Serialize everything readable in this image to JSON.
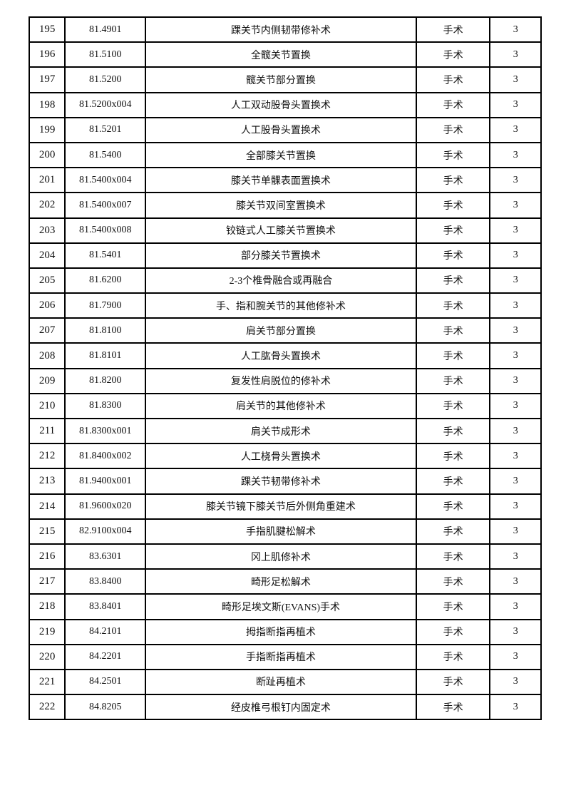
{
  "table": {
    "rows": [
      {
        "no": "195",
        "code": "81.4901",
        "name": "踝关节内侧韧带修补术",
        "type": "手术",
        "level": "3"
      },
      {
        "no": "196",
        "code": "81.5100",
        "name": "全髋关节置换",
        "type": "手术",
        "level": "3"
      },
      {
        "no": "197",
        "code": "81.5200",
        "name": "髋关节部分置换",
        "type": "手术",
        "level": "3"
      },
      {
        "no": "198",
        "code": "81.5200x004",
        "name": "人工双动股骨头置换术",
        "type": "手术",
        "level": "3"
      },
      {
        "no": "199",
        "code": "81.5201",
        "name": "人工股骨头置换术",
        "type": "手术",
        "level": "3"
      },
      {
        "no": "200",
        "code": "81.5400",
        "name": "全部膝关节置换",
        "type": "手术",
        "level": "3"
      },
      {
        "no": "201",
        "code": "81.5400x004",
        "name": "膝关节单髁表面置换术",
        "type": "手术",
        "level": "3"
      },
      {
        "no": "202",
        "code": "81.5400x007",
        "name": "膝关节双间室置换术",
        "type": "手术",
        "level": "3"
      },
      {
        "no": "203",
        "code": "81.5400x008",
        "name": "铰链式人工膝关节置换术",
        "type": "手术",
        "level": "3"
      },
      {
        "no": "204",
        "code": "81.5401",
        "name": "部分膝关节置换术",
        "type": "手术",
        "level": "3"
      },
      {
        "no": "205",
        "code": "81.6200",
        "name": "2-3个椎骨融合或再融合",
        "type": "手术",
        "level": "3"
      },
      {
        "no": "206",
        "code": "81.7900",
        "name": "手、指和腕关节的其他修补术",
        "type": "手术",
        "level": "3"
      },
      {
        "no": "207",
        "code": "81.8100",
        "name": "肩关节部分置换",
        "type": "手术",
        "level": "3"
      },
      {
        "no": "208",
        "code": "81.8101",
        "name": "人工肱骨头置换术",
        "type": "手术",
        "level": "3"
      },
      {
        "no": "209",
        "code": "81.8200",
        "name": "复发性肩脱位的修补术",
        "type": "手术",
        "level": "3"
      },
      {
        "no": "210",
        "code": "81.8300",
        "name": "肩关节的其他修补术",
        "type": "手术",
        "level": "3"
      },
      {
        "no": "211",
        "code": "81.8300x001",
        "name": "肩关节成形术",
        "type": "手术",
        "level": "3"
      },
      {
        "no": "212",
        "code": "81.8400x002",
        "name": "人工桡骨头置换术",
        "type": "手术",
        "level": "3"
      },
      {
        "no": "213",
        "code": "81.9400x001",
        "name": "踝关节韧带修补术",
        "type": "手术",
        "level": "3"
      },
      {
        "no": "214",
        "code": "81.9600x020",
        "name": "膝关节镜下膝关节后外侧角重建术",
        "type": "手术",
        "level": "3"
      },
      {
        "no": "215",
        "code": "82.9100x004",
        "name": "手指肌腱松解术",
        "type": "手术",
        "level": "3"
      },
      {
        "no": "216",
        "code": "83.6301",
        "name": "冈上肌修补术",
        "type": "手术",
        "level": "3"
      },
      {
        "no": "217",
        "code": "83.8400",
        "name": "畸形足松解术",
        "type": "手术",
        "level": "3"
      },
      {
        "no": "218",
        "code": "83.8401",
        "name": "畸形足埃文斯(EVANS)手术",
        "type": "手术",
        "level": "3"
      },
      {
        "no": "219",
        "code": "84.2101",
        "name": "拇指断指再植术",
        "type": "手术",
        "level": "3"
      },
      {
        "no": "220",
        "code": "84.2201",
        "name": "手指断指再植术",
        "type": "手术",
        "level": "3"
      },
      {
        "no": "221",
        "code": "84.2501",
        "name": "断趾再植术",
        "type": "手术",
        "level": "3"
      },
      {
        "no": "222",
        "code": "84.8205",
        "name": "经皮椎弓根钉内固定术",
        "type": "手术",
        "level": "3"
      }
    ]
  }
}
